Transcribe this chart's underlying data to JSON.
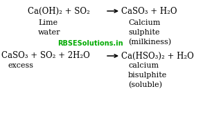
{
  "bg_color": "#ffffff",
  "text_color": "#000000",
  "watermark_color": "#00aa00",
  "watermark_text": "RBSESolutions.in",
  "eq1_left": "Ca(OH)₂ + SO₂—→",
  "eq1_left_text": "Ca(OH)₂ + SO₂",
  "eq1_right": "CaSO₃ + H₂O",
  "eq1_label_left1": "Lime",
  "eq1_label_left2": "water",
  "eq1_label_right1": "Calcium",
  "eq1_label_right2": "sulphite",
  "eq1_label_right3": "(milkiness)",
  "eq2_left_text": "CaSO₃ + SO₂ + 2H₂O",
  "eq2_right": "Ca(HSO₃)₂ + H₂O",
  "eq2_label_left1": "excess",
  "eq2_label_right1": "calcium",
  "eq2_label_right2": "bisulphite",
  "eq2_label_right3": "(soluble)",
  "eq_fontsize": 8.5,
  "label_fontsize": 8.0,
  "watermark_fontsize": 7.0
}
